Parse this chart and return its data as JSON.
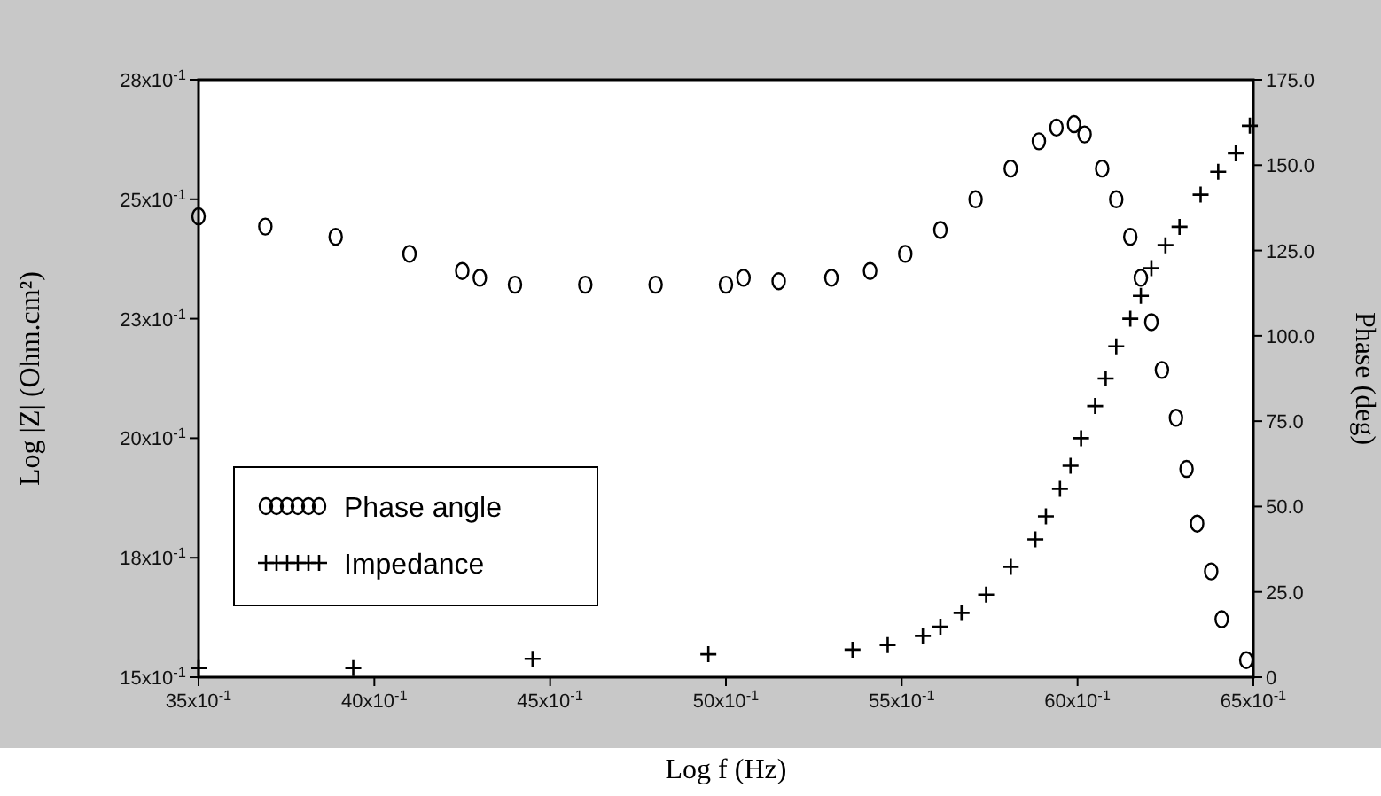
{
  "chart_data": {
    "type": "scatter",
    "xlabel": "Log f (Hz)",
    "ylabel": "Log |Z| (Ohm.cm²)",
    "y2label": "Phase (deg)",
    "xlim": [
      3.5,
      6.5
    ],
    "xticks": [
      {
        "value": 3.5,
        "label": "35x10$^{-1}$"
      },
      {
        "value": 4.0,
        "label": "40x10$^{-1}$"
      },
      {
        "value": 4.5,
        "label": "45x10$^{-1}$"
      },
      {
        "value": 5.0,
        "label": "50x10$^{-1}$"
      },
      {
        "value": 5.5,
        "label": "55x10$^{-1}$"
      },
      {
        "value": 6.0,
        "label": "60x10$^{-1}$"
      },
      {
        "value": 6.5,
        "label": "65x10$^{-1}$"
      }
    ],
    "ylim": [
      1.5,
      2.8
    ],
    "yticks": [
      {
        "value": 1.5,
        "label": "15x10$^{-1}$"
      },
      {
        "value": 1.76,
        "label": "18x10$^{-1}$"
      },
      {
        "value": 2.02,
        "label": "20x10$^{-1}$"
      },
      {
        "value": 2.28,
        "label": "23x10$^{-1}$"
      },
      {
        "value": 2.54,
        "label": "25x10$^{-1}$"
      },
      {
        "value": 2.8,
        "label": "28x10$^{-1}$"
      }
    ],
    "y2lim": [
      0,
      175
    ],
    "y2ticks": [
      {
        "value": 0,
        "label": "0"
      },
      {
        "value": 25,
        "label": "25.0"
      },
      {
        "value": 50,
        "label": "50.0"
      },
      {
        "value": 75,
        "label": "75.0"
      },
      {
        "value": 100,
        "label": "100.0"
      },
      {
        "value": 125,
        "label": "125.0"
      },
      {
        "value": 150,
        "label": "150.0"
      },
      {
        "value": 175,
        "label": "175.0"
      }
    ],
    "legend": "left",
    "grid": false,
    "series": [
      {
        "name": "Phase angle",
        "color": "#000000",
        "marker": "circle",
        "axis": "y2",
        "x": [
          3.5,
          3.69,
          3.89,
          4.1,
          4.25,
          4.3,
          4.4,
          4.6,
          4.8,
          5.0,
          5.05,
          5.15,
          5.3,
          5.41,
          5.51,
          5.61,
          5.71,
          5.81,
          5.89,
          5.94,
          5.99,
          6.02,
          6.07,
          6.11,
          6.15,
          6.18,
          6.21,
          6.24,
          6.28,
          6.31,
          6.34,
          6.38,
          6.41,
          6.48
        ],
        "values": [
          135,
          132,
          129,
          124,
          119,
          117,
          115,
          115,
          115,
          115,
          117,
          116,
          117,
          119,
          124,
          131,
          140,
          149,
          157,
          161,
          162,
          159,
          149,
          140,
          129,
          117,
          104,
          90,
          76,
          61,
          45,
          31,
          17,
          5
        ]
      },
      {
        "name": "Impedance",
        "color": "#000000",
        "marker": "cross",
        "axis": "y",
        "x": [
          3.5,
          3.94,
          4.45,
          4.95,
          5.36,
          5.46,
          5.56,
          5.61,
          5.67,
          5.74,
          5.81,
          5.88,
          5.91,
          5.95,
          5.98,
          6.01,
          6.05,
          6.08,
          6.11,
          6.15,
          6.18,
          6.21,
          6.25,
          6.29,
          6.35,
          6.4,
          6.45,
          6.49
        ],
        "values": [
          1.52,
          1.52,
          1.54,
          1.55,
          1.56,
          1.57,
          1.59,
          1.61,
          1.64,
          1.68,
          1.74,
          1.8,
          1.85,
          1.91,
          1.96,
          2.02,
          2.09,
          2.15,
          2.22,
          2.28,
          2.33,
          2.39,
          2.44,
          2.48,
          2.55,
          2.6,
          2.64,
          2.7
        ]
      }
    ]
  }
}
